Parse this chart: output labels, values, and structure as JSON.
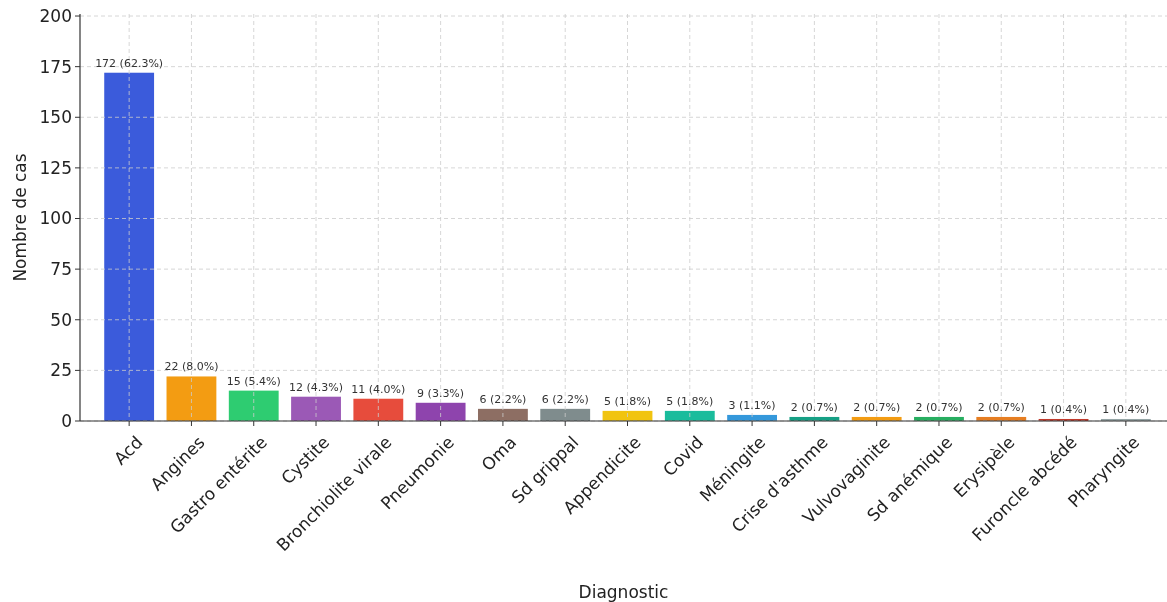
{
  "chart_data": {
    "type": "bar",
    "xlabel": "Diagnostic",
    "ylabel": "Nombre de cas",
    "categories": [
      "Acd",
      "Angines",
      "Gastro entérite",
      "Cystite",
      "Bronchiolite virale",
      "Pneumonie",
      "Oma",
      "Sd grippal",
      "Appendicite",
      "Covid",
      "Méningite",
      "Crise d'asthme",
      "Vulvovaginite",
      "Sd anémique",
      "Erysipèle",
      "Furoncle abcédé",
      "Pharyngite"
    ],
    "values": [
      172,
      22,
      15,
      12,
      11,
      9,
      6,
      6,
      5,
      5,
      3,
      2,
      2,
      2,
      2,
      1,
      1
    ],
    "colors": [
      "#3b5bdb",
      "#f39c12",
      "#2ecc71",
      "#9b59b6",
      "#e74c3c",
      "#8e44ad",
      "#8d6e63",
      "#7f8c8d",
      "#f1c40f",
      "#1abc9c",
      "#3498db",
      "#16a085",
      "#f39c12",
      "#27ae60",
      "#e67e22",
      "#c0392b",
      "#95a5a6"
    ],
    "value_labels": [
      "172 (62.3%)",
      "22 (8.0%)",
      "15 (5.4%)",
      "12 (4.3%)",
      "11 (4.0%)",
      "9 (3.3%)",
      "6 (2.2%)",
      "6 (2.2%)",
      "5 (1.8%)",
      "5 (1.8%)",
      "3 (1.1%)",
      "2 (0.7%)",
      "2 (0.7%)",
      "2 (0.7%)",
      "2 (0.7%)",
      "1 (0.4%)",
      "1 (0.4%)"
    ],
    "ylim": [
      0,
      201
    ],
    "yticks": [
      0,
      25,
      50,
      75,
      100,
      125,
      150,
      175,
      200
    ],
    "grid": true
  }
}
